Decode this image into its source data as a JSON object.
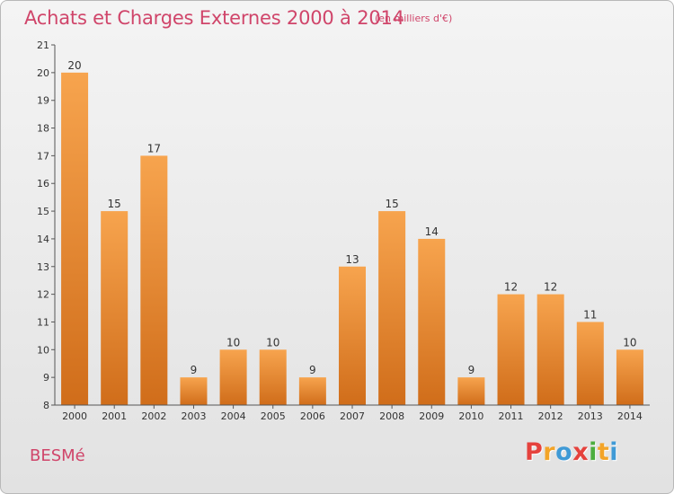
{
  "header": {
    "title": "Achats et Charges Externes 2000 à 2014",
    "subtitle": "(en milliers d'€)"
  },
  "footer": {
    "town": "BESMé",
    "logo": "Proxiti",
    "logo_colors": [
      "#e5423d",
      "#f3a428",
      "#3f9ad6",
      "#e5423d",
      "#4cae3f",
      "#f3a428",
      "#3f9ad6"
    ]
  },
  "colors": {
    "bar_top": "#f7a44e",
    "bar_bottom": "#d06d1a",
    "axis": "#555555",
    "text": "#333333",
    "title": "#d0456a"
  },
  "chart_data": {
    "type": "bar",
    "categories": [
      "2000",
      "2001",
      "2002",
      "2003",
      "2004",
      "2005",
      "2006",
      "2007",
      "2008",
      "2009",
      "2010",
      "2011",
      "2012",
      "2013",
      "2014"
    ],
    "values": [
      20,
      15,
      17,
      9,
      10,
      10,
      9,
      13,
      15,
      14,
      9,
      12,
      12,
      11,
      10
    ],
    "ylim": [
      8,
      21
    ],
    "yticks": [
      8,
      9,
      10,
      11,
      12,
      13,
      14,
      15,
      16,
      17,
      18,
      19,
      20,
      21
    ],
    "grid": false,
    "data_labels": true
  }
}
